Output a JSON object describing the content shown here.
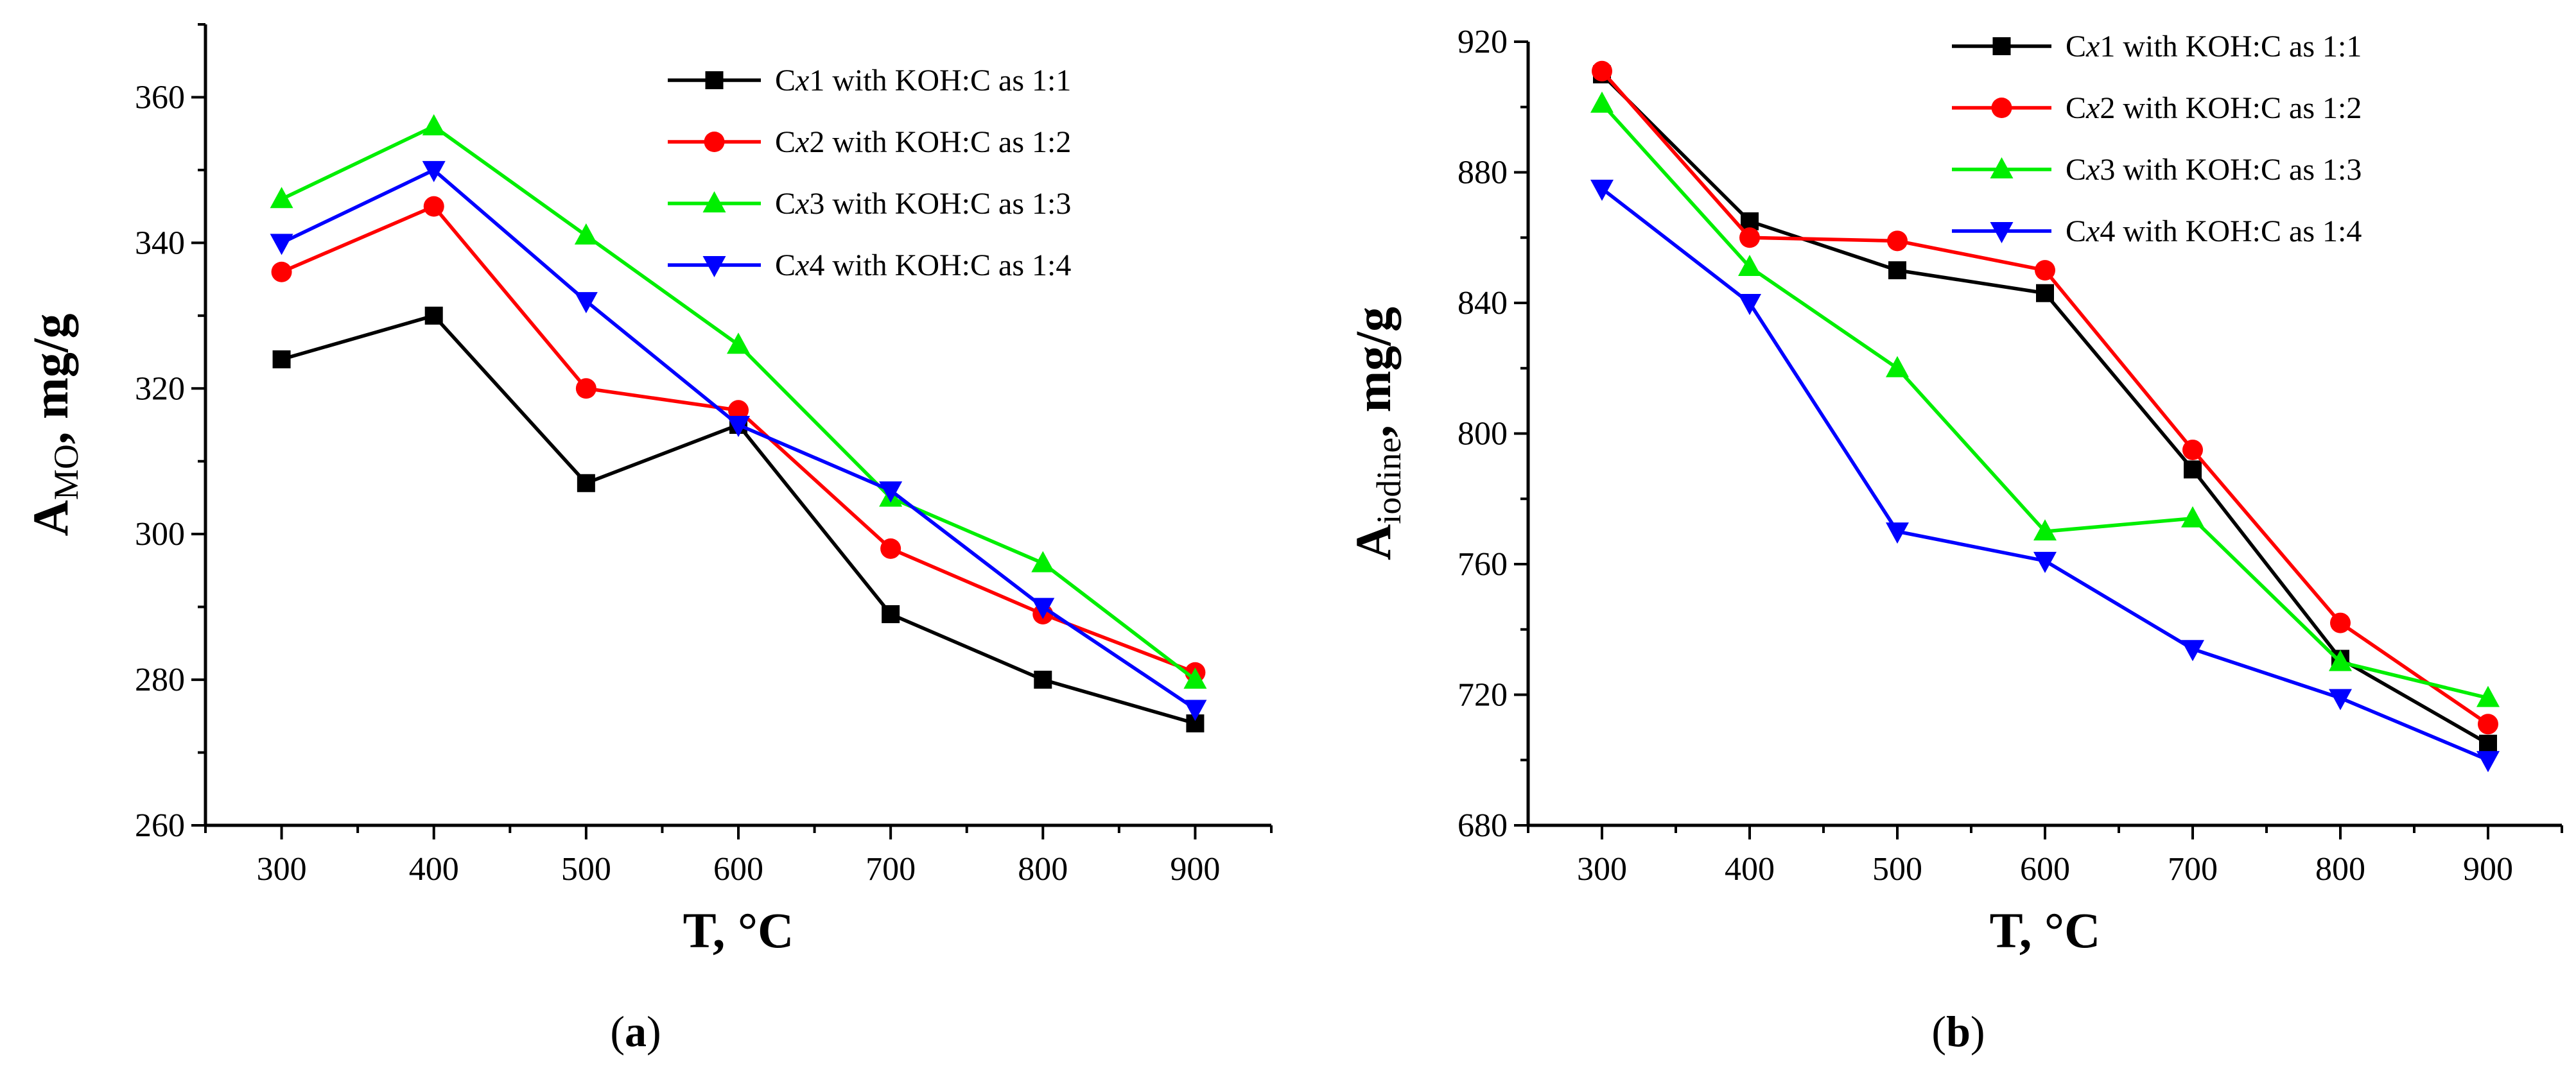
{
  "chart_data": [
    {
      "type": "line",
      "panel_label": "a",
      "xlabel": "T, °C",
      "ylabel_main": "A",
      "ylabel_sub": "MO",
      "ylabel_unit": ", mg/g",
      "x": [
        300,
        400,
        500,
        600,
        700,
        800,
        900
      ],
      "xlim": [
        250,
        950
      ],
      "ylim": [
        260,
        370
      ],
      "x_ticks": [
        300,
        400,
        500,
        600,
        700,
        800,
        900
      ],
      "y_ticks": [
        260,
        280,
        300,
        320,
        340,
        360
      ],
      "legend_position": "top-right",
      "series": [
        {
          "name": "Cx1 with KOH:C as 1:1",
          "prefix": "C",
          "italic": "x",
          "suffix": "1 with KOH:C as 1:1",
          "color": "#000000",
          "marker": "square",
          "values": [
            324,
            330,
            307,
            315,
            289,
            280,
            274
          ]
        },
        {
          "name": "Cx2 with KOH:C as 1:2",
          "prefix": "C",
          "italic": "x",
          "suffix": "2 with KOH:C as 1:2",
          "color": "#ff0000",
          "marker": "circle",
          "values": [
            336,
            345,
            320,
            317,
            298,
            289,
            281
          ]
        },
        {
          "name": "Cx3 with KOH:C as 1:3",
          "prefix": "C",
          "italic": "x",
          "suffix": "3 with KOH:C as 1:3",
          "color": "#00ee00",
          "marker": "triangle-up",
          "values": [
            346,
            356,
            341,
            326,
            305,
            296,
            280
          ]
        },
        {
          "name": "Cx4 with KOH:C as 1:4",
          "prefix": "C",
          "italic": "x",
          "suffix": "4 with KOH:C as 1:4",
          "color": "#0000ff",
          "marker": "triangle-down",
          "values": [
            340,
            350,
            332,
            315,
            306,
            290,
            276
          ]
        }
      ]
    },
    {
      "type": "line",
      "panel_label": "b",
      "xlabel": "T, °C",
      "ylabel_main": "A",
      "ylabel_sub": "iodine",
      "ylabel_unit": ", mg/g",
      "x": [
        300,
        400,
        500,
        600,
        700,
        800,
        900
      ],
      "xlim": [
        250,
        950
      ],
      "ylim": [
        680,
        920
      ],
      "x_ticks": [
        300,
        400,
        500,
        600,
        700,
        800,
        900
      ],
      "y_ticks": [
        680,
        720,
        760,
        800,
        840,
        880,
        920
      ],
      "legend_position": "top-right",
      "series": [
        {
          "name": "Cx1 with KOH:C as 1:1",
          "prefix": "C",
          "italic": "x",
          "suffix": "1 with KOH:C as 1:1",
          "color": "#000000",
          "marker": "square",
          "values": [
            910,
            865,
            850,
            843,
            789,
            731,
            705
          ]
        },
        {
          "name": "Cx2 with KOH:C as 1:2",
          "prefix": "C",
          "italic": "x",
          "suffix": "2 with KOH:C as 1:2",
          "color": "#ff0000",
          "marker": "circle",
          "values": [
            911,
            860,
            859,
            850,
            795,
            742,
            711
          ]
        },
        {
          "name": "Cx3 with KOH:C as 1:3",
          "prefix": "C",
          "italic": "x",
          "suffix": "3 with KOH:C as 1:3",
          "color": "#00ee00",
          "marker": "triangle-up",
          "values": [
            901,
            851,
            820,
            770,
            774,
            730,
            719
          ]
        },
        {
          "name": "Cx4 with KOH:C as 1:4",
          "prefix": "C",
          "italic": "x",
          "suffix": "4 with KOH:C as 1:4",
          "color": "#0000ff",
          "marker": "triangle-down",
          "values": [
            875,
            840,
            770,
            761,
            734,
            719,
            700
          ]
        }
      ]
    }
  ]
}
